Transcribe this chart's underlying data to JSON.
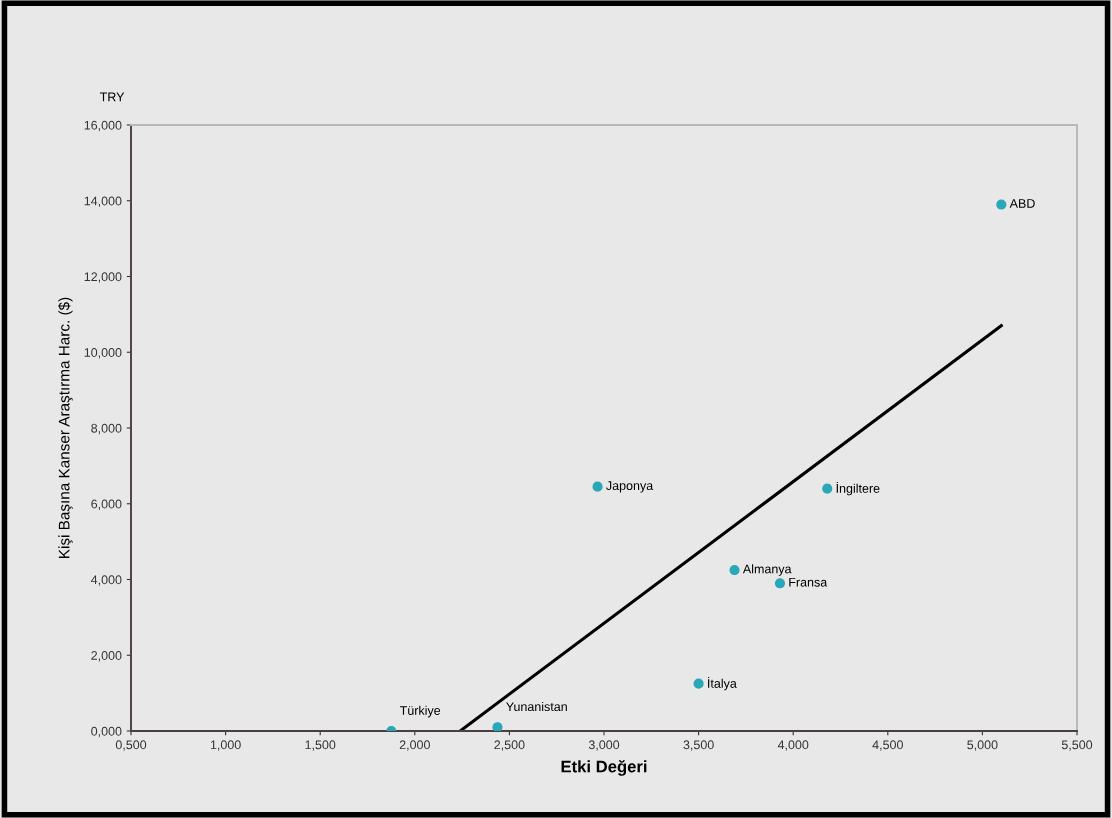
{
  "chart_data": {
    "type": "scatter",
    "xlabel": "Etki Değeri",
    "ylabel": "Kişi Başına Kanser Araştırma Harc. ($)",
    "series": [
      {
        "color": "#2aa7b8",
        "marker": "circle",
        "x": [
          1.876,
          2.437,
          2.966,
          3.69,
          3.93,
          3.5,
          4.18,
          5.1
        ],
        "values": [
          0.0,
          0.1,
          6.45,
          4.25,
          3.9,
          1.25,
          6.4,
          13.9
        ]
      },
      {
        "type": "line",
        "color": "#000000",
        "marker": "none",
        "line_style": "solid",
        "x": [
          2.24,
          5.1
        ],
        "values": [
          0.0,
          10.7
        ]
      }
    ],
    "annotations": [
      {
        "text": "Türkiye",
        "x": 1.876,
        "y": 0.0
      },
      {
        "text": "Yunanistan",
        "x": 2.437,
        "y": 0.1
      },
      {
        "text": "Japonya",
        "x": 2.966,
        "y": 6.45
      },
      {
        "text": "Almanya",
        "x": 3.69,
        "y": 4.25
      },
      {
        "text": "Fransa",
        "x": 3.93,
        "y": 3.9
      },
      {
        "text": "İtalya",
        "x": 3.5,
        "y": 1.25
      },
      {
        "text": "İngiltere",
        "x": 4.18,
        "y": 6.4
      },
      {
        "text": "ABD",
        "x": 5.1,
        "y": 13.9
      },
      "TRY"
    ],
    "xlim": [
      0.5,
      5.5
    ],
    "xticks": [
      {
        "value": 0.5,
        "label": "0,500"
      },
      {
        "value": 1.0,
        "label": "1,000"
      },
      {
        "value": 1.5,
        "label": "1,500"
      },
      {
        "value": 2.0,
        "label": "2,000"
      },
      {
        "value": 2.5,
        "label": "2,500"
      },
      {
        "value": 3.0,
        "label": "3,000"
      },
      {
        "value": 3.5,
        "label": "3,500"
      },
      {
        "value": 4.0,
        "label": "4,000"
      },
      {
        "value": 4.5,
        "label": "4,500"
      },
      {
        "value": 5.0,
        "label": "5,000"
      },
      {
        "value": 5.5,
        "label": "5,500"
      }
    ],
    "ylim": [
      0,
      16
    ],
    "yticks": [
      {
        "value": 0,
        "label": "0,000"
      },
      {
        "value": 2,
        "label": "2,000"
      },
      {
        "value": 4,
        "label": "4,000"
      },
      {
        "value": 6,
        "label": "6,000"
      },
      {
        "value": 8,
        "label": "8,000"
      },
      {
        "value": 10,
        "label": "10,000"
      },
      {
        "value": 12,
        "label": "12,000"
      },
      {
        "value": 14,
        "label": "14,000"
      },
      {
        "value": 16,
        "label": "16,000"
      }
    ],
    "grid": false,
    "legend": false
  }
}
